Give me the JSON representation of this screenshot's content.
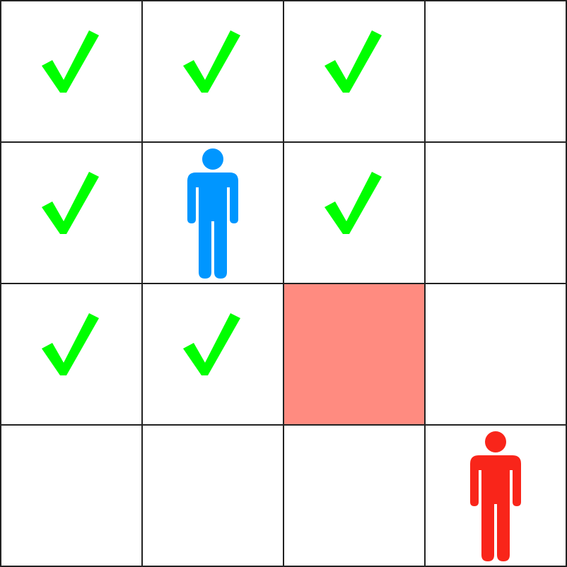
{
  "board": {
    "rows": 4,
    "cols": 4,
    "colors": {
      "grid_line": "#222222",
      "background": "#ffffff",
      "check": "#00ff00",
      "blocked": "#ff8b80",
      "player": "#0096ff",
      "opponent": "#f9251a"
    },
    "cells": [
      [
        "check",
        "check",
        "check",
        "empty"
      ],
      [
        "check",
        "player",
        "check",
        "empty"
      ],
      [
        "check",
        "check",
        "blocked",
        "empty"
      ],
      [
        "empty",
        "empty",
        "empty",
        "opponent"
      ]
    ],
    "icons": {
      "check": "check-icon",
      "player": "person-icon",
      "opponent": "person-icon",
      "blocked": "blocked-square"
    }
  }
}
